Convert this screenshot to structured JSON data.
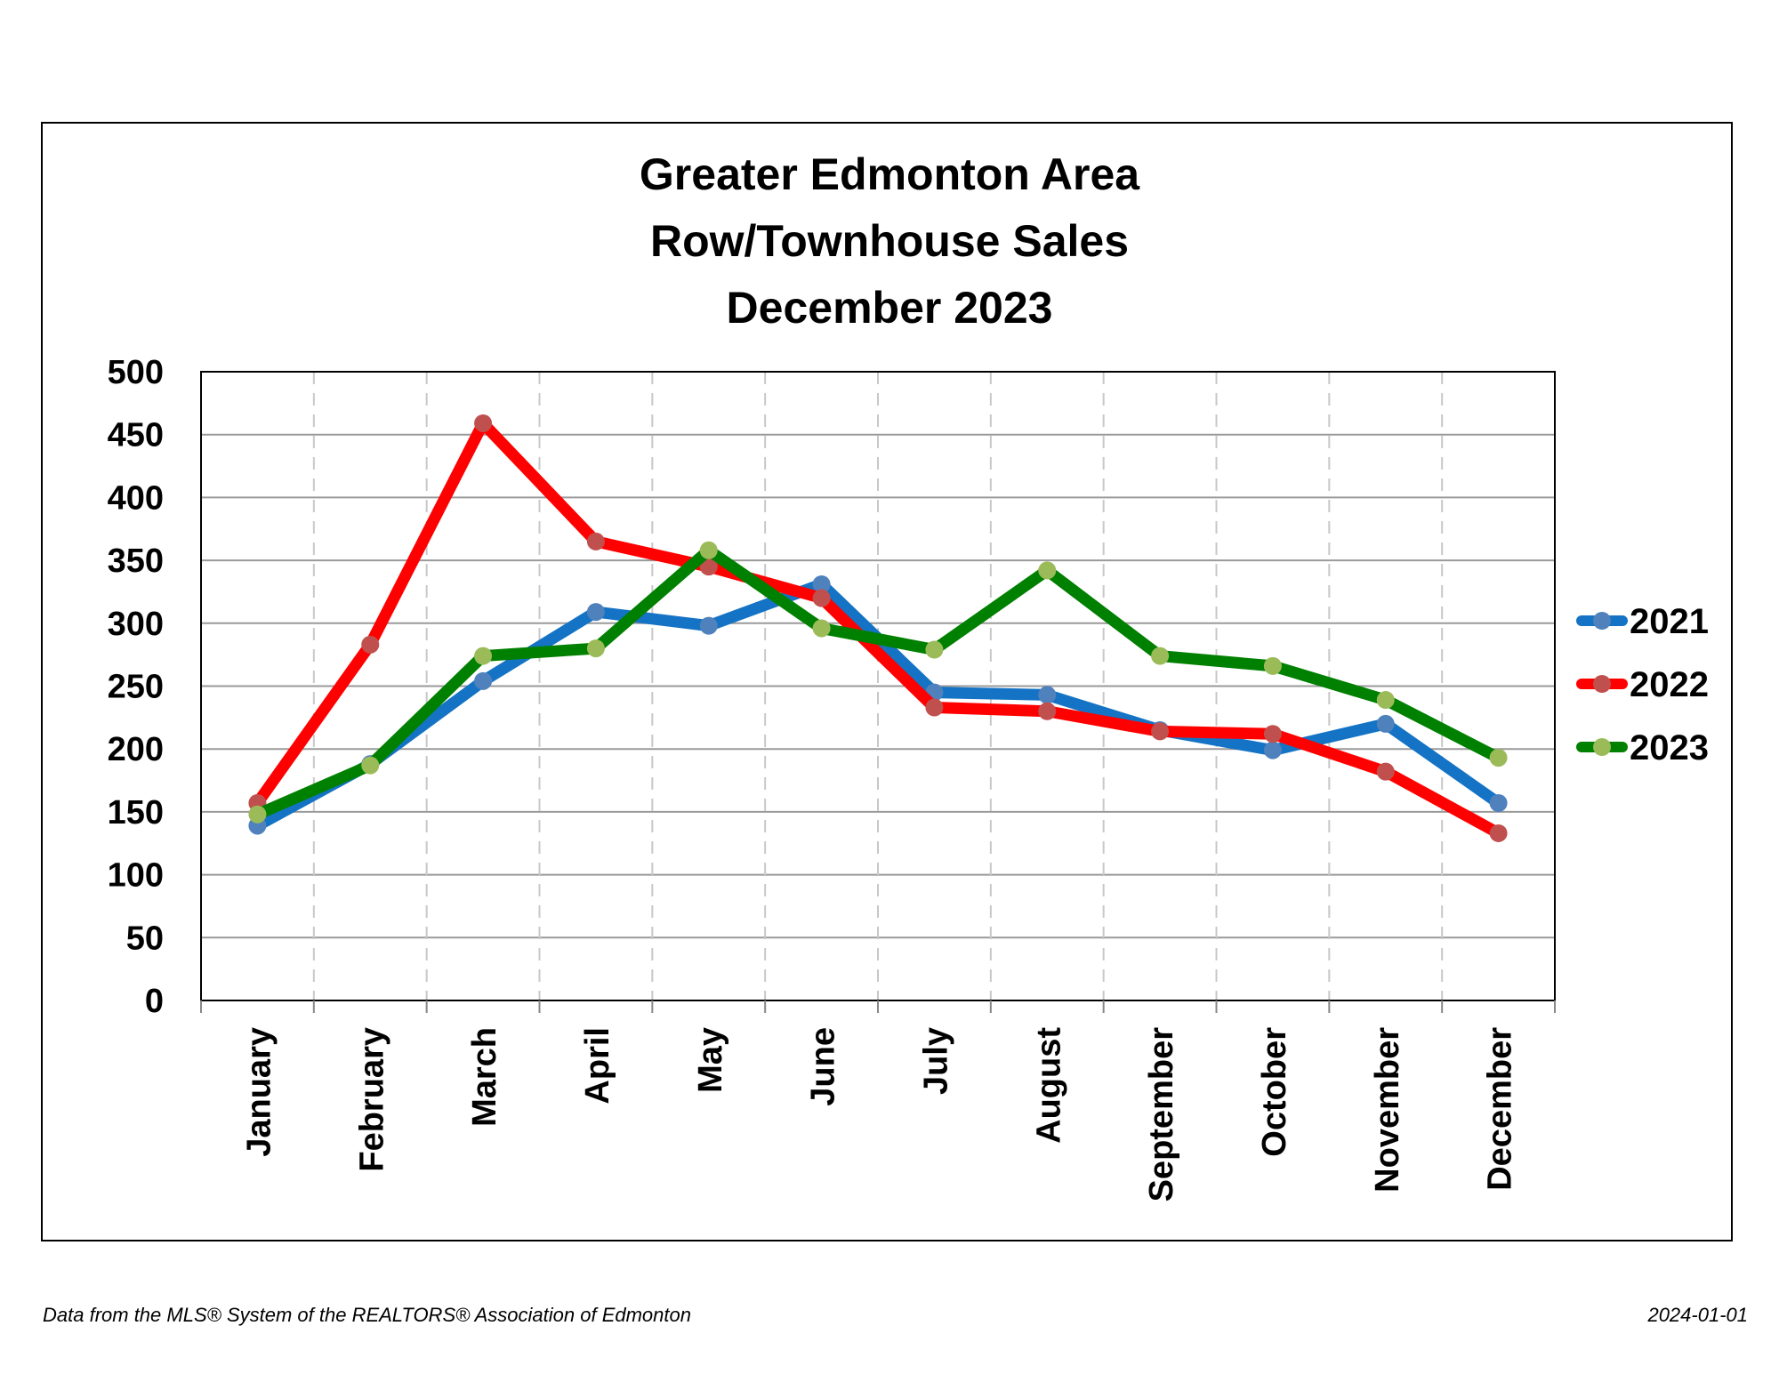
{
  "footer": {
    "source": "Data from the MLS® System of the REALTORS® Association of Edmonton",
    "date": "2024-01-01"
  },
  "chart_data": {
    "type": "line",
    "title_lines": [
      "Greater Edmonton Area",
      "Row/Townhouse Sales",
      "December 2023"
    ],
    "xlabel": "",
    "ylabel": "",
    "categories": [
      "January",
      "February",
      "March",
      "April",
      "May",
      "June",
      "July",
      "August",
      "September",
      "October",
      "November",
      "December"
    ],
    "ylim": [
      0,
      500
    ],
    "yticks": [
      0,
      50,
      100,
      150,
      200,
      250,
      300,
      350,
      400,
      450,
      500
    ],
    "grid": {
      "horizontal": "solid",
      "vertical": "dashed"
    },
    "legend": {
      "placement": "right"
    },
    "series": [
      {
        "name": "2021",
        "line_color": "#1473c4",
        "marker_color": "#4f81bd",
        "values": [
          139,
          188,
          254,
          309,
          298,
          331,
          245,
          243,
          215,
          199,
          220,
          157
        ]
      },
      {
        "name": "2022",
        "line_color": "#ff0000",
        "marker_color": "#c0504d",
        "values": [
          157,
          283,
          459,
          365,
          345,
          320,
          233,
          230,
          214,
          212,
          182,
          133
        ]
      },
      {
        "name": "2023",
        "line_color": "#008000",
        "marker_color": "#9bbb59",
        "values": [
          148,
          187,
          274,
          280,
          358,
          296,
          279,
          342,
          274,
          266,
          239,
          193
        ]
      }
    ]
  }
}
